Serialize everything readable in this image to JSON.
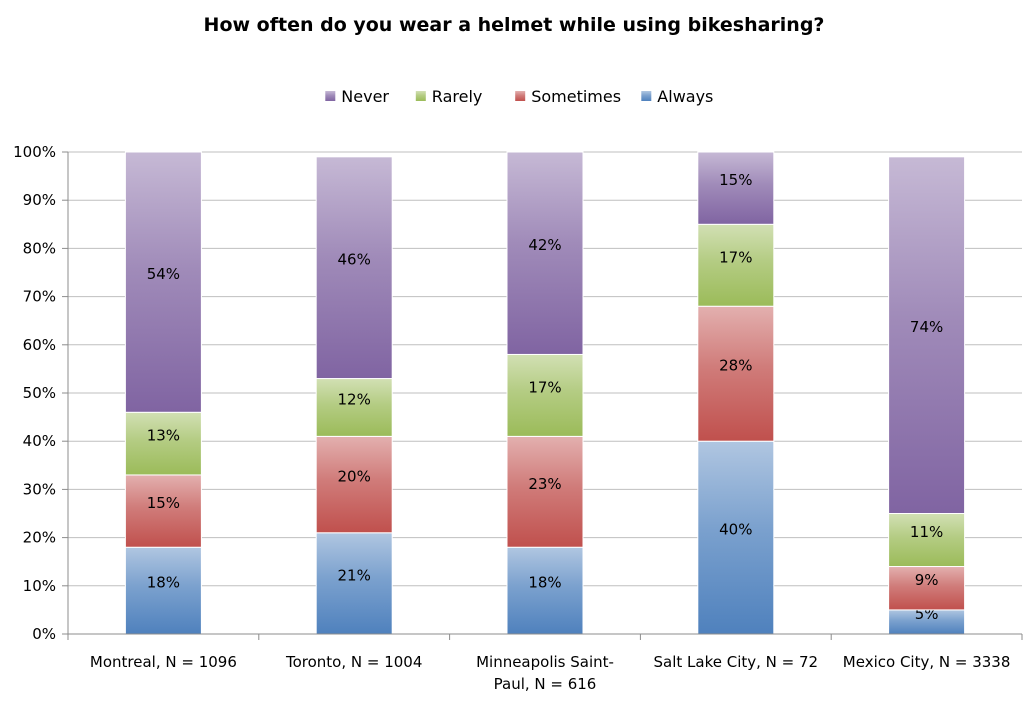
{
  "chart_data": {
    "type": "bar",
    "stacked": true,
    "percent": true,
    "title": "How often do you wear a helmet while using bikesharing?",
    "categories": [
      [
        "Montreal, N = 1096"
      ],
      [
        "Toronto, N = 1004"
      ],
      [
        "Minneapolis Saint-",
        "Paul, N = 616"
      ],
      [
        "Salt Lake City, N = 72"
      ],
      [
        "Mexico City, N = 3338"
      ]
    ],
    "series": [
      {
        "name": "Always",
        "color": "#4f81bd",
        "values": [
          18,
          21,
          18,
          40,
          5
        ],
        "labels": [
          "18%",
          "21%",
          "18%",
          "40%",
          "5%"
        ]
      },
      {
        "name": "Sometimes",
        "color": "#c0504d",
        "values": [
          15,
          20,
          23,
          28,
          9
        ],
        "labels": [
          "15%",
          "20%",
          "23%",
          "28%",
          "9%"
        ]
      },
      {
        "name": "Rarely",
        "color": "#9bbb59",
        "values": [
          13,
          12,
          17,
          17,
          11
        ],
        "labels": [
          "13%",
          "12%",
          "17%",
          "17%",
          "11%"
        ]
      },
      {
        "name": "Never",
        "color": "#8064a2",
        "values": [
          54,
          46,
          42,
          15,
          74
        ],
        "labels": [
          "54%",
          "46%",
          "42%",
          "15%",
          "74%"
        ]
      }
    ],
    "legend_order": [
      "Never",
      "Rarely",
      "Sometimes",
      "Always"
    ],
    "legend_position": "top",
    "ylim": [
      0,
      100
    ],
    "yticks": [
      "0%",
      "10%",
      "20%",
      "30%",
      "40%",
      "50%",
      "60%",
      "70%",
      "80%",
      "90%",
      "100%"
    ],
    "grid": true
  }
}
